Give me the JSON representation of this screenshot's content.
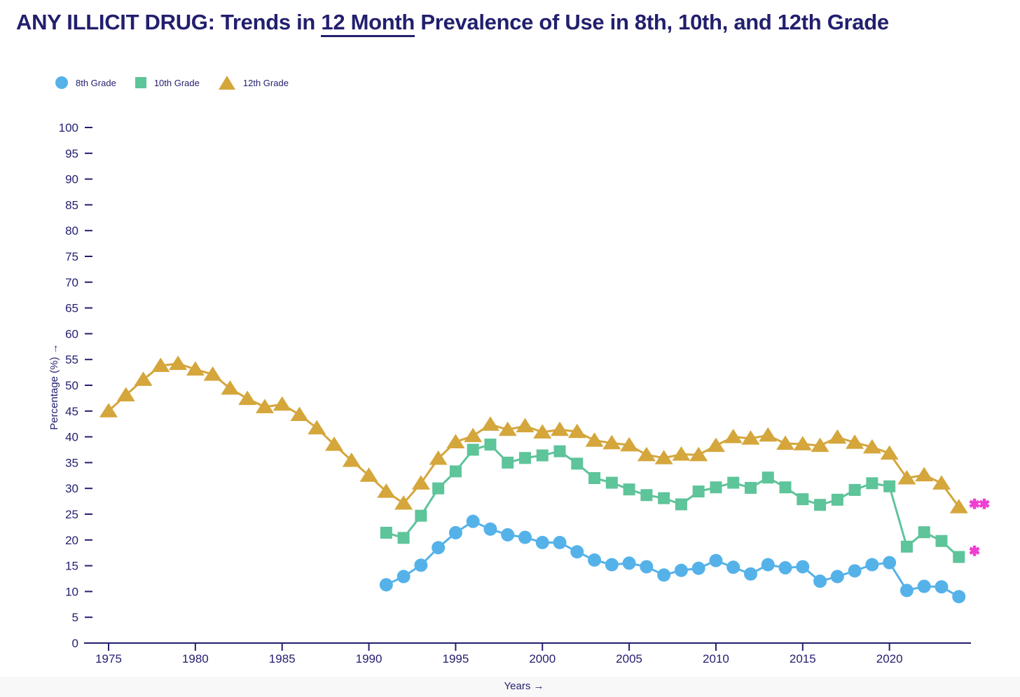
{
  "header": {
    "title_prefix": "ANY ILLICIT DRUG: Trends in ",
    "title_underlined": "12 Month",
    "title_suffix": " Prevalence of Use in 8th, 10th, and 12th Grade"
  },
  "colors": {
    "ink": "#221f6e",
    "blue": "#55b2e9",
    "green": "#5ec49a",
    "gold": "#d4a63b",
    "magenta": "#ef3fd1",
    "footer_band": "#f8f8f8"
  },
  "legend": {
    "items": [
      {
        "label": "8th Grade",
        "marker": "circle",
        "color": "#55b2e9"
      },
      {
        "label": "10th Grade",
        "marker": "square",
        "color": "#5ec49a"
      },
      {
        "label": "12th Grade",
        "marker": "triangle",
        "color": "#d4a63b"
      }
    ]
  },
  "chart_data": {
    "type": "line",
    "title": "ANY ILLICIT DRUG: Trends in 12 Month Prevalence of Use in 8th, 10th, and 12th Grade",
    "xlabel": "Years →",
    "ylabel": "Percentage (%) →",
    "xlim": [
      1975,
      2024
    ],
    "ylim": [
      0,
      100
    ],
    "grid": false,
    "legend_position": "top-left",
    "xticks": [
      1975,
      1980,
      1985,
      1990,
      1995,
      2000,
      2005,
      2010,
      2015,
      2020
    ],
    "yticks": [
      0,
      5,
      10,
      15,
      20,
      25,
      30,
      35,
      40,
      45,
      50,
      55,
      60,
      65,
      70,
      75,
      80,
      85,
      90,
      95,
      100
    ],
    "series": [
      {
        "name": "8th Grade",
        "marker": "circle",
        "color": "#55b2e9",
        "start_year": 1991,
        "values": [
          11.3,
          12.9,
          15.1,
          18.5,
          21.4,
          23.6,
          22.1,
          21.0,
          20.5,
          19.5,
          19.5,
          17.7,
          16.1,
          15.2,
          15.5,
          14.8,
          13.2,
          14.1,
          14.5,
          16.0,
          14.7,
          13.4,
          15.2,
          14.6,
          14.8,
          12.0,
          12.9,
          14.0,
          15.2,
          15.6,
          10.2,
          11.0,
          10.9,
          9.0
        ]
      },
      {
        "name": "10th Grade",
        "marker": "square",
        "color": "#5ec49a",
        "start_year": 1991,
        "values": [
          21.4,
          20.4,
          24.7,
          30.0,
          33.3,
          37.5,
          38.5,
          35.0,
          35.9,
          36.4,
          37.2,
          34.8,
          32.0,
          31.1,
          29.8,
          28.7,
          28.1,
          26.9,
          29.4,
          30.2,
          31.1,
          30.1,
          32.1,
          30.2,
          27.9,
          26.8,
          27.8,
          29.7,
          31.0,
          30.4,
          18.7,
          21.5,
          19.8,
          16.7
        ]
      },
      {
        "name": "12th Grade",
        "marker": "triangle",
        "color": "#d4a63b",
        "start_year": 1975,
        "values": [
          45.0,
          48.1,
          51.1,
          53.8,
          54.2,
          53.1,
          52.1,
          49.4,
          47.4,
          45.8,
          46.3,
          44.3,
          41.7,
          38.5,
          35.4,
          32.5,
          29.4,
          27.1,
          31.0,
          35.8,
          39.0,
          40.2,
          42.4,
          41.4,
          42.1,
          40.9,
          41.4,
          41.0,
          39.3,
          38.8,
          38.4,
          36.5,
          35.9,
          36.6,
          36.5,
          38.3,
          40.0,
          39.7,
          40.3,
          38.7,
          38.6,
          38.3,
          39.9,
          38.9,
          38.0,
          36.8,
          32.0,
          32.6,
          31.0,
          26.4
        ]
      }
    ],
    "annotations": [
      {
        "text": "✱✱",
        "color": "#ef3fd1",
        "year": 2024.9,
        "value": 27.0
      },
      {
        "text": "✱",
        "color": "#ef3fd1",
        "year": 2024.9,
        "value": 17.9
      }
    ]
  }
}
